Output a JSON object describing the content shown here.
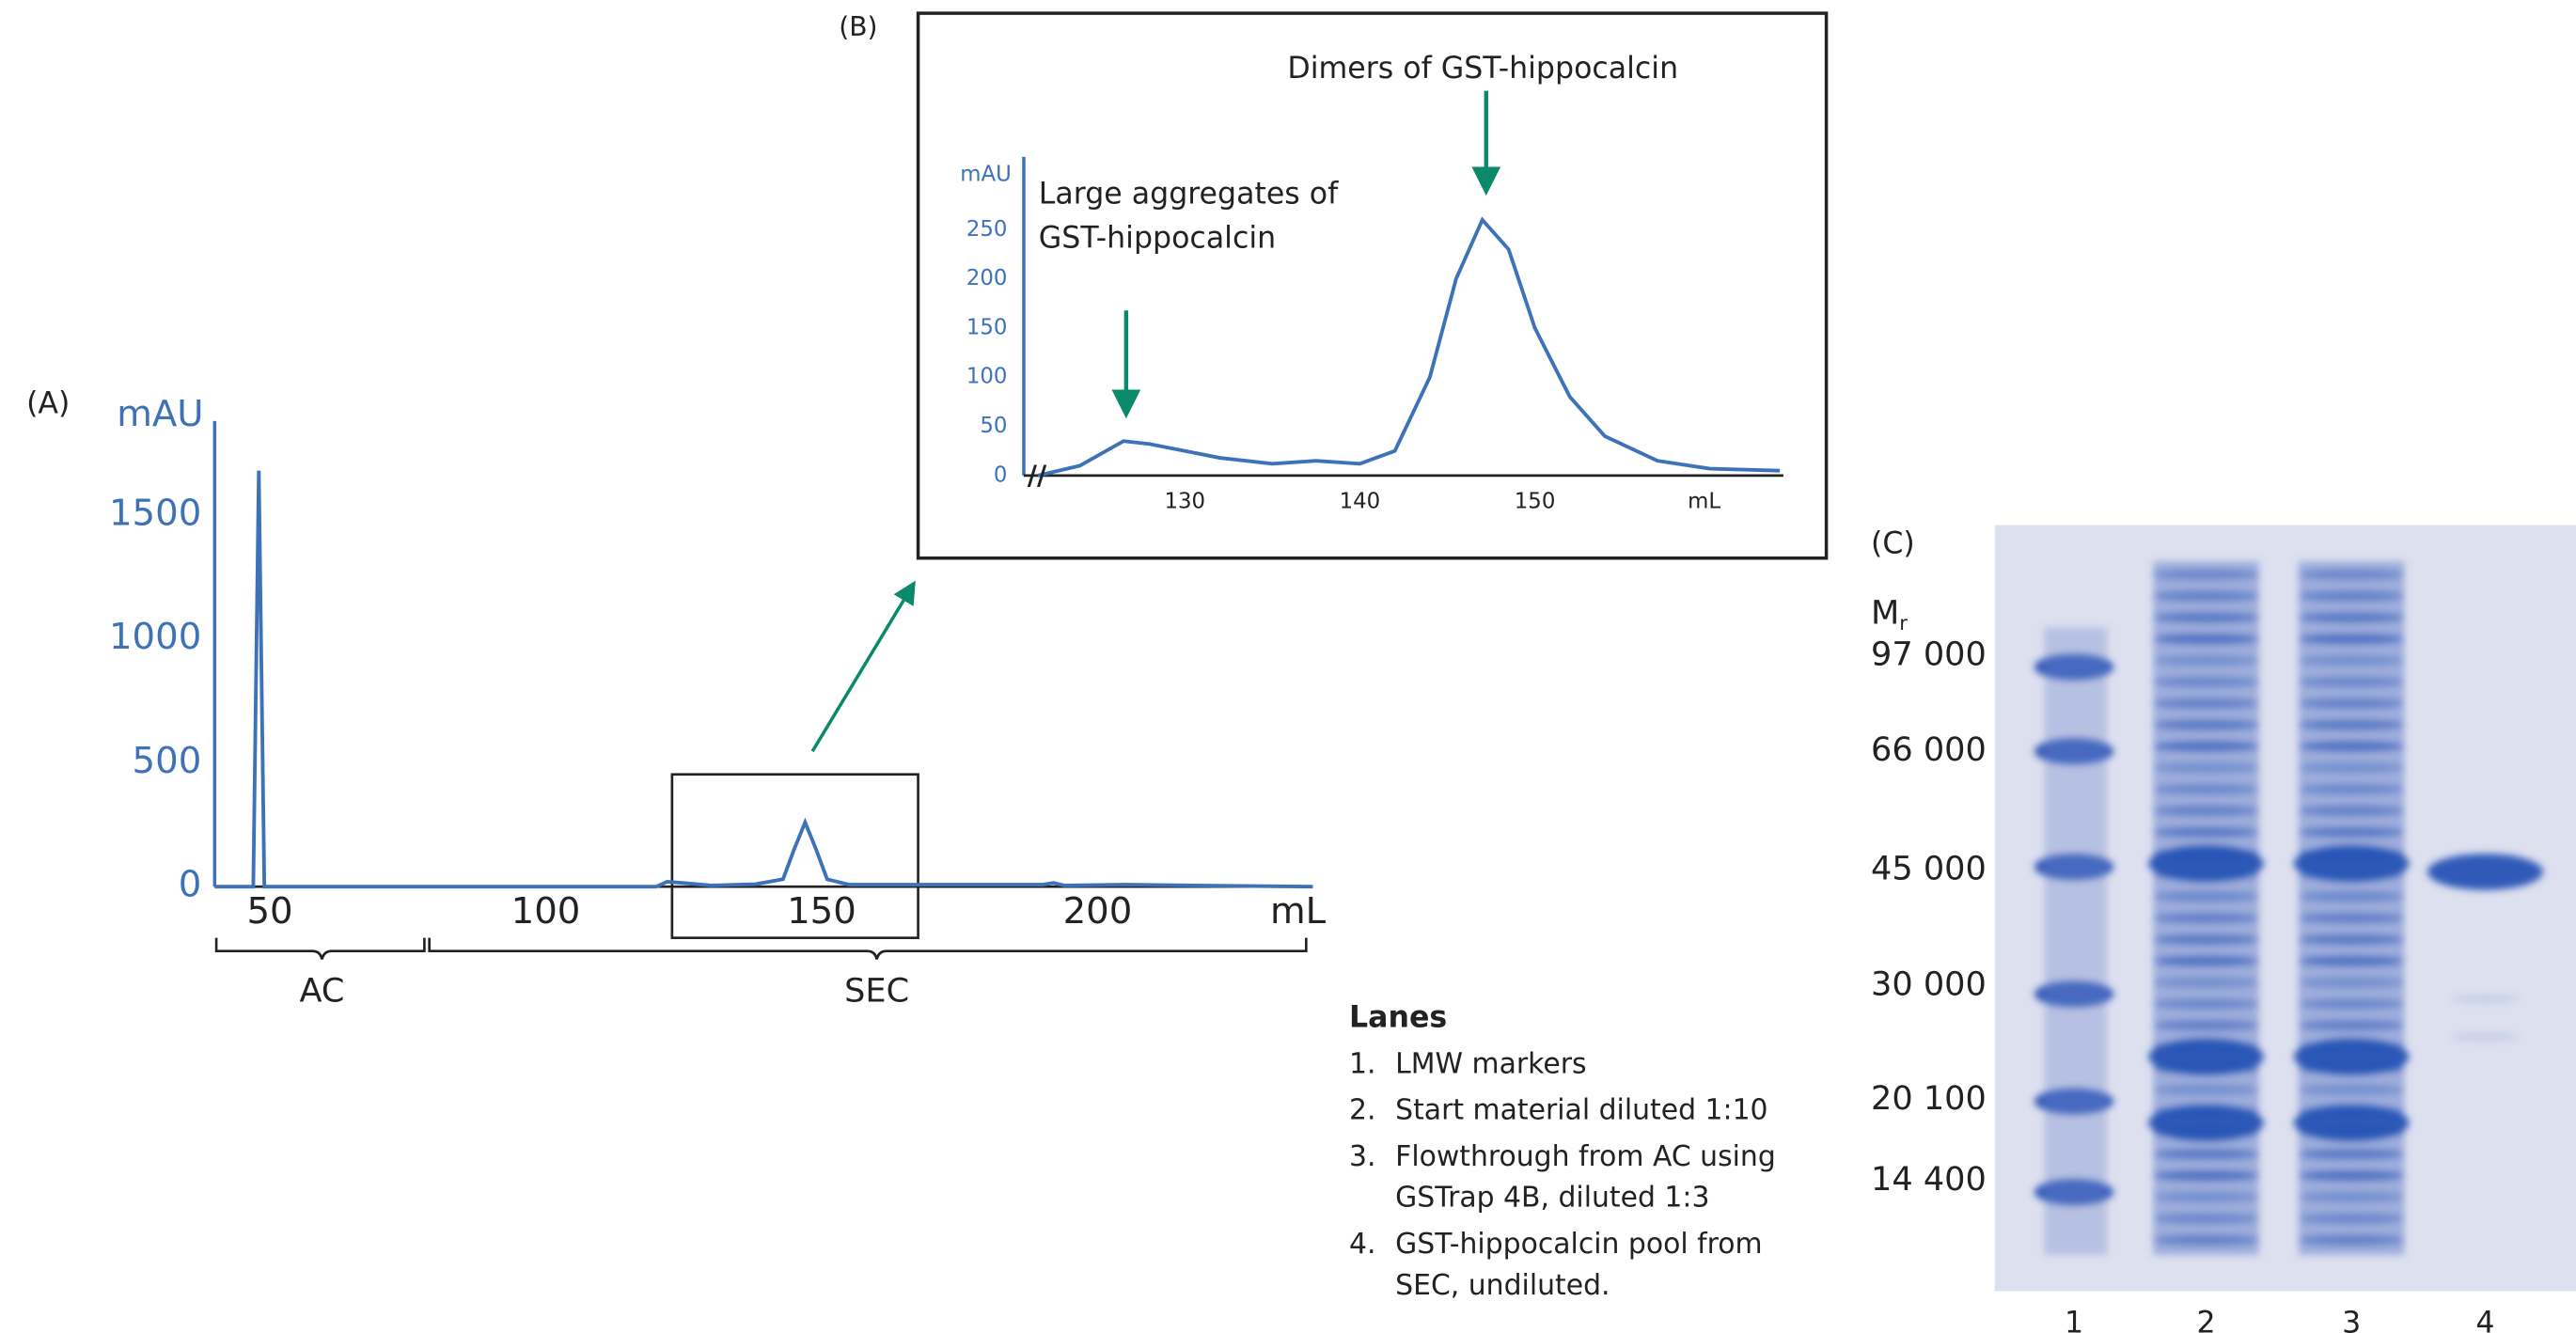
{
  "chart_data": [
    {
      "type": "line",
      "panel_label": "(A)",
      "y_label": "mAU",
      "x_label": "mL",
      "x": [
        40,
        47,
        48,
        49,
        120,
        122,
        125,
        130,
        138,
        143,
        145,
        147,
        149,
        151,
        155,
        190,
        192,
        194,
        205,
        239
      ],
      "series": [
        {
          "color": "#3d72b8",
          "values": [
            0,
            0,
            1680,
            0,
            0,
            20,
            15,
            5,
            10,
            30,
            150,
            260,
            150,
            30,
            8,
            8,
            15,
            5,
            8,
            0
          ]
        }
      ],
      "xlim": [
        40,
        239
      ],
      "ylim": [
        0,
        1880
      ],
      "xticks": [
        50,
        100,
        150,
        200
      ],
      "yticks": [
        0,
        500,
        1000,
        1500
      ],
      "brackets": [
        "AC",
        "SEC"
      ]
    },
    {
      "type": "line",
      "panel_label": "(B)",
      "y_label": "mAU",
      "x_label": "mL",
      "x": [
        121.6,
        124,
        126.5,
        128,
        132,
        135,
        137.5,
        140,
        142,
        144,
        145.5,
        147,
        148.5,
        150,
        152,
        154,
        157,
        160,
        164
      ],
      "series": [
        {
          "color": "#3d72b8",
          "values": [
            0,
            10,
            35,
            32,
            18,
            12,
            15,
            12,
            25,
            100,
            200,
            260,
            230,
            150,
            80,
            40,
            15,
            7,
            5
          ]
        }
      ],
      "xlim": [
        120.8,
        164.2
      ],
      "ylim": [
        0,
        324
      ],
      "xticks": [
        130,
        140,
        150
      ],
      "yticks": [
        0,
        50,
        100,
        150,
        200,
        250
      ],
      "annotations": [
        {
          "lines": [
            "Dimers of GST-hippocalcin"
          ]
        },
        {
          "lines": [
            "Large aggregates of",
            "GST-hippocalcin"
          ]
        }
      ]
    }
  ],
  "gel": {
    "panel_label": "(C)",
    "mr": "M",
    "mr_sub": "r",
    "markers": [
      "97 000",
      "66 000",
      "45 000",
      "30 000",
      "20 100",
      "14 400"
    ],
    "lane_numbers": [
      "1",
      "2",
      "3",
      "4"
    ]
  },
  "legend": {
    "title": "Lanes",
    "items": [
      {
        "number": "1.",
        "lines": [
          "LMW markers"
        ]
      },
      {
        "number": "2.",
        "lines": [
          "Start material diluted 1:10"
        ]
      },
      {
        "number": "3.",
        "lines": [
          "Flowthrough from AC using",
          "GSTrap 4B, diluted 1:3"
        ]
      },
      {
        "number": "4.",
        "lines": [
          "GST-hippocalcin pool from",
          "SEC, undiluted."
        ]
      }
    ]
  }
}
